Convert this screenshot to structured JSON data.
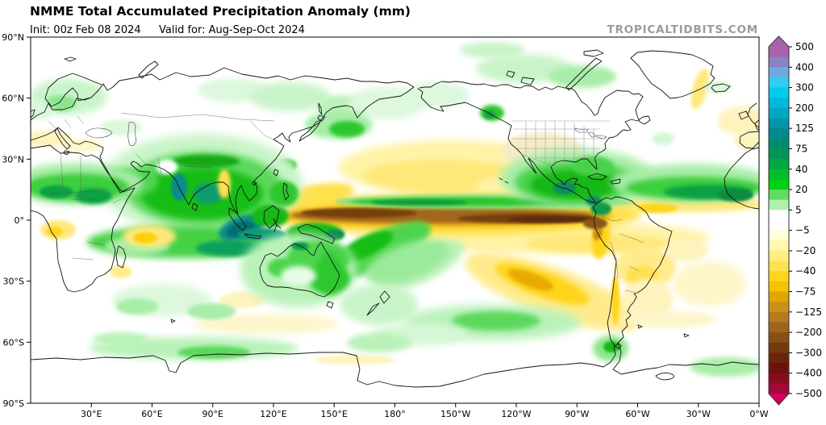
{
  "header": {
    "title": "NMME Total Accumulated Precipitation Anomaly (mm)",
    "init": "Init: 00z Feb 08 2024",
    "valid": "Valid for: Aug-Sep-Oct 2024",
    "watermark": "TROPICALTIDBITS.COM"
  },
  "axes": {
    "lon_ticks": [
      {
        "label": "30°E",
        "deg": 30
      },
      {
        "label": "60°E",
        "deg": 60
      },
      {
        "label": "90°E",
        "deg": 90
      },
      {
        "label": "120°E",
        "deg": 120
      },
      {
        "label": "150°E",
        "deg": 150
      },
      {
        "label": "180°",
        "deg": 180
      },
      {
        "label": "150°W",
        "deg": 210
      },
      {
        "label": "120°W",
        "deg": 240
      },
      {
        "label": "90°W",
        "deg": 270
      },
      {
        "label": "60°W",
        "deg": 300
      },
      {
        "label": "30°W",
        "deg": 330
      },
      {
        "label": "0°W",
        "deg": 360
      }
    ],
    "lat_ticks": [
      {
        "label": "90°N",
        "lat": 90
      },
      {
        "label": "60°N",
        "lat": 60
      },
      {
        "label": "30°N",
        "lat": 30
      },
      {
        "label": "0°",
        "lat": 0
      },
      {
        "label": "30°S",
        "lat": -30
      },
      {
        "label": "60°S",
        "lat": -60
      },
      {
        "label": "90°S",
        "lat": -90
      }
    ]
  },
  "colorbar": {
    "labels": [
      "500",
      "400",
      "300",
      "200",
      "125",
      "75",
      "40",
      "20",
      "5",
      "−5",
      "−20",
      "−40",
      "−75",
      "−125",
      "−200",
      "−300",
      "−400",
      "−500"
    ],
    "band_colors": [
      "#a963ad",
      "#8a82c4",
      "#6fa8dc",
      "#2fcdf2",
      "#00ccf2",
      "#00b8dd",
      "#00a7c4",
      "#0096a8",
      "#008a8c",
      "#008a70",
      "#009455",
      "#00a743",
      "#00bb2d",
      "#00d112",
      "#5fdd5f",
      "#aef0ae",
      "#ffffff",
      "#ffffff",
      "#ffffd8",
      "#fff8ab",
      "#ffee80",
      "#ffe14e",
      "#ffd51d",
      "#f4c202",
      "#e0a703",
      "#cb9016",
      "#b57a1d",
      "#9e641b",
      "#885014",
      "#733a0d",
      "#6b250b",
      "#6f1009",
      "#870b20",
      "#a40837"
    ],
    "top_arrow_color": "#a963ad",
    "bottom_arrow_color": "#d4015f",
    "outline_color": "#333333"
  },
  "chart_data": {
    "type": "heatmap",
    "subtype": "global filled-contour anomaly map, equirectangular 0°E–360°E / 90°N–90°S",
    "title": "NMME Total Accumulated Precipitation Anomaly (mm)",
    "init": "00z Feb 08 2024",
    "valid_period": "Aug-Sep-Oct 2024",
    "units": "mm",
    "colorbar_levels": [
      500,
      400,
      300,
      200,
      125,
      75,
      40,
      20,
      5,
      -5,
      -20,
      -40,
      -75,
      -125,
      -200,
      -300,
      -400,
      -500
    ],
    "lon_tick_labels": [
      "30°E",
      "60°E",
      "90°E",
      "120°E",
      "150°E",
      "180°",
      "150°W",
      "120°W",
      "90°W",
      "60°W",
      "30°W",
      "0°W"
    ],
    "lat_tick_labels": [
      "90°N",
      "60°N",
      "30°N",
      "0°",
      "30°S",
      "60°S",
      "90°S"
    ],
    "legend_position": "right",
    "grid": false,
    "notable_anomalies": [
      {
        "region": "Equatorial central/eastern Pacific band (~0–7°N, 135°E–80°W)",
        "sign": "negative",
        "approx_mm": -300
      },
      {
        "region": "Maritime Continent / Indonesia / Bay of Bengal / India",
        "sign": "positive",
        "approx_mm": 150
      },
      {
        "region": "Caribbean, Central America and tropical Atlantic ITCZ (10–15°N)",
        "sign": "positive",
        "approx_mm": 100
      },
      {
        "region": "Sahel and East Africa",
        "sign": "positive",
        "approx_mm": 60
      },
      {
        "region": "Northern and eastern Australia, SPCZ",
        "sign": "positive",
        "approx_mm": 60
      },
      {
        "region": "Subtropical North Pacific (~15–35°N)",
        "sign": "negative",
        "approx_mm": -40
      },
      {
        "region": "Southeast Pacific diagonal band (~25–40°S, 140–80°W)",
        "sign": "negative",
        "approx_mm": -75
      },
      {
        "region": "Peru/Ecuador coast",
        "sign": "negative",
        "approx_mm": -75
      },
      {
        "region": "Paraguay / northern Argentina",
        "sign": "negative",
        "approx_mm": -40
      },
      {
        "region": "Contiguous US interior",
        "sign": "negative",
        "approx_mm": -20
      },
      {
        "region": "Western equatorial Indian Ocean spot",
        "sign": "negative",
        "approx_mm": -20
      },
      {
        "region": "Southern Ocean bands (~50–65°S)",
        "sign": "positive",
        "approx_mm": 20
      }
    ]
  },
  "map": {
    "field_blobs": [
      [
        560,
        208,
        140,
        34,
        0,
        "#fff3a6",
        5
      ],
      [
        545,
        218,
        95,
        20,
        0,
        "#ffe87a",
        4
      ],
      [
        650,
        232,
        60,
        16,
        0,
        "#fff3a6",
        4
      ],
      [
        672,
        186,
        50,
        22,
        0,
        "#f5ecc6",
        4
      ],
      [
        55,
        172,
        32,
        10,
        0,
        "#fdf3bb",
        3
      ],
      [
        100,
        180,
        28,
        8,
        0,
        "#fdf6c9",
        3
      ],
      [
        920,
        150,
        30,
        18,
        0,
        "#fdf3bb",
        4
      ],
      [
        868,
        110,
        9,
        26,
        15,
        "#ffe87a",
        3
      ],
      [
        928,
        175,
        18,
        10,
        0,
        "#fdf3bb",
        3
      ],
      [
        560,
        295,
        120,
        14,
        0,
        "#fff3a6",
        5
      ],
      [
        700,
        295,
        180,
        20,
        0,
        "#fff3a6",
        5
      ],
      [
        740,
        302,
        90,
        12,
        0,
        "#ffe87a",
        4
      ],
      [
        685,
        362,
        115,
        30,
        20,
        "#ffeb8c",
        5
      ],
      [
        672,
        352,
        62,
        16,
        20,
        "#ffd51d",
        4
      ],
      [
        658,
        347,
        30,
        9,
        20,
        "#e8a900",
        3
      ],
      [
        800,
        332,
        38,
        26,
        0,
        "#ffeb8c",
        4
      ],
      [
        796,
        342,
        20,
        12,
        0,
        "#ffe14e",
        3
      ],
      [
        802,
        372,
        32,
        26,
        0,
        "#fdf3bb",
        4
      ],
      [
        880,
        352,
        45,
        28,
        0,
        "#fdf6c9",
        5
      ],
      [
        850,
        310,
        28,
        14,
        0,
        "#fdf3bb",
        4
      ],
      [
        830,
        396,
        60,
        10,
        0,
        "#fdf6c9",
        4
      ],
      [
        330,
        402,
        90,
        12,
        0,
        "#fdf6c9",
        5
      ],
      [
        440,
        446,
        50,
        6,
        0,
        "#fdf3bb",
        3
      ],
      [
        300,
        372,
        28,
        10,
        0,
        "#fdf3bb",
        3
      ],
      [
        763,
        372,
        5,
        30,
        0,
        "#ffd51d",
        2
      ],
      [
        745,
        295,
        11,
        26,
        8,
        "#ffd51d",
        3
      ],
      [
        741,
        286,
        6,
        12,
        8,
        "#c98a10",
        2
      ],
      [
        150,
        337,
        14,
        8,
        0,
        "#ffeb8c",
        3
      ],
      [
        72,
        285,
        22,
        12,
        0,
        "#ffe87a",
        3
      ],
      [
        68,
        287,
        10,
        6,
        0,
        "#ffd51d",
        2
      ],
      [
        845,
        253,
        105,
        10,
        0,
        "#ffe87a",
        4
      ],
      [
        815,
        258,
        25,
        6,
        0,
        "#ffd51d",
        2
      ],
      [
        380,
        247,
        60,
        16,
        -12,
        "#ffe14e",
        4
      ],
      [
        560,
        266,
        235,
        26,
        0,
        "#ffe14e",
        5
      ],
      [
        555,
        267,
        205,
        15,
        0,
        "#edb30f",
        4
      ],
      [
        548,
        267,
        188,
        10,
        0,
        "#a2661c",
        3
      ],
      [
        445,
        264,
        72,
        6,
        0,
        "#76400e",
        2
      ],
      [
        655,
        271,
        88,
        6,
        0,
        "#76400e",
        2
      ],
      [
        685,
        272,
        55,
        4,
        0,
        "#5c2a08",
        2
      ],
      [
        738,
        277,
        15,
        7,
        0,
        "#8a5512",
        2
      ],
      [
        85,
        120,
        48,
        22,
        0,
        "#c9f4c9",
        5
      ],
      [
        75,
        128,
        20,
        10,
        0,
        "#8ce68c",
        3
      ],
      [
        48,
        137,
        18,
        12,
        0,
        "#ddf8dd",
        4
      ],
      [
        290,
        112,
        45,
        15,
        0,
        "#ddf8dd",
        4
      ],
      [
        360,
        120,
        50,
        18,
        0,
        "#c9f4c9",
        5
      ],
      [
        425,
        132,
        32,
        14,
        0,
        "#b9f2b9",
        4
      ],
      [
        480,
        128,
        48,
        20,
        0,
        "#ddf8dd",
        5
      ],
      [
        540,
        118,
        42,
        16,
        0,
        "#ddf8dd",
        4
      ],
      [
        650,
        85,
        60,
        18,
        0,
        "#c9f4c9",
        5
      ],
      [
        722,
        95,
        42,
        14,
        0,
        "#a8eda8",
        4
      ],
      [
        610,
        62,
        40,
        10,
        0,
        "#c9f4c9",
        4
      ],
      [
        890,
        108,
        18,
        8,
        0,
        "#ddf8dd",
        3
      ],
      [
        822,
        172,
        14,
        8,
        0,
        "#d6f7d6",
        3
      ],
      [
        150,
        158,
        26,
        10,
        0,
        "#ddf8dd",
        3
      ],
      [
        420,
        155,
        42,
        18,
        0,
        "#a8eda8",
        4
      ],
      [
        430,
        160,
        22,
        10,
        0,
        "#2ec82e",
        3
      ],
      [
        355,
        205,
        13,
        8,
        0,
        "#14b814",
        2
      ],
      [
        610,
        140,
        15,
        10,
        0,
        "#2ec82e",
        3
      ],
      [
        607,
        142,
        7,
        5,
        0,
        "#0f9b4a",
        2
      ],
      [
        250,
        228,
        125,
        62,
        0,
        "#c9f4c9",
        6
      ],
      [
        253,
        234,
        98,
        46,
        0,
        "#5cd85c",
        5
      ],
      [
        250,
        240,
        76,
        32,
        0,
        "#17bd17",
        4
      ],
      [
        222,
        232,
        10,
        17,
        0,
        "#0b8a8a",
        2
      ],
      [
        258,
        240,
        18,
        13,
        0,
        "#0c9b6e",
        3
      ],
      [
        255,
        200,
        42,
        8,
        0,
        "#15a815",
        3
      ],
      [
        207,
        207,
        13,
        9,
        0,
        "#ffffff",
        3
      ],
      [
        278,
        228,
        8,
        18,
        0,
        "#ffe14e",
        3
      ],
      [
        160,
        226,
        36,
        18,
        0,
        "#4ed44e",
        4
      ],
      [
        150,
        232,
        13,
        6,
        0,
        "#0fa05a",
        2
      ],
      [
        95,
        228,
        82,
        26,
        0,
        "#a8eda8",
        5
      ],
      [
        95,
        232,
        65,
        17,
        0,
        "#3ecf3e",
        4
      ],
      [
        70,
        238,
        21,
        8,
        0,
        "#0fa044",
        2
      ],
      [
        116,
        243,
        23,
        10,
        0,
        "#0fa044",
        3
      ],
      [
        230,
        300,
        122,
        20,
        0,
        "#45d045",
        5
      ],
      [
        285,
        308,
        42,
        10,
        0,
        "#0fa05a",
        3
      ],
      [
        170,
        305,
        40,
        12,
        0,
        "#a8eda8",
        4
      ],
      [
        185,
        293,
        33,
        14,
        0,
        "#ffe87a",
        4
      ],
      [
        180,
        295,
        15,
        7,
        0,
        "#ffcf0d",
        2
      ],
      [
        300,
        282,
        30,
        14,
        -20,
        "#0b8a8a",
        3
      ],
      [
        298,
        284,
        18,
        8,
        -20,
        "#007070",
        2
      ],
      [
        335,
        268,
        23,
        14,
        0,
        "#14b814",
        3
      ],
      [
        325,
        291,
        30,
        8,
        0,
        "#0d9b75",
        2
      ],
      [
        352,
        240,
        18,
        16,
        0,
        "#2ec82e",
        3
      ],
      [
        390,
        290,
        36,
        14,
        0,
        "#14b814",
        3
      ],
      [
        385,
        296,
        12,
        5,
        0,
        "#0a7a4a",
        2
      ],
      [
        415,
        291,
        12,
        6,
        0,
        "#0c8a5a",
        2
      ],
      [
        470,
        310,
        70,
        22,
        -25,
        "#4ed44e",
        4
      ],
      [
        455,
        305,
        35,
        12,
        -25,
        "#17bd17",
        3
      ],
      [
        520,
        330,
        60,
        20,
        -25,
        "#b9f2b9",
        5
      ],
      [
        505,
        325,
        55,
        22,
        -20,
        "#9bea9b",
        5
      ],
      [
        370,
        335,
        72,
        46,
        0,
        "#b9f2b9",
        6
      ],
      [
        395,
        320,
        40,
        22,
        0,
        "#4ed44e",
        4
      ],
      [
        408,
        345,
        26,
        20,
        0,
        "#2ec82e",
        4
      ],
      [
        408,
        338,
        14,
        26,
        0,
        "#2ec82e",
        4
      ],
      [
        350,
        332,
        18,
        12,
        0,
        "#4ed44e",
        3
      ],
      [
        370,
        342,
        22,
        12,
        0,
        "#e8fbe8",
        4
      ],
      [
        372,
        305,
        11,
        5,
        0,
        "#0f9b4a",
        2
      ],
      [
        600,
        250,
        185,
        9,
        0,
        "#7fe07f",
        3
      ],
      [
        590,
        250,
        155,
        5,
        0,
        "#2ec82e",
        2
      ],
      [
        520,
        251,
        60,
        3.5,
        0,
        "#0c9b3c",
        2
      ],
      [
        700,
        249,
        52,
        3.5,
        0,
        "#0c9b3c",
        2
      ],
      [
        715,
        221,
        95,
        36,
        0,
        "#a8eda8",
        6
      ],
      [
        714,
        226,
        75,
        26,
        0,
        "#49d249",
        5
      ],
      [
        712,
        229,
        55,
        18,
        0,
        "#14b814",
        4
      ],
      [
        700,
        233,
        14,
        8,
        0,
        "#0b8a60",
        2
      ],
      [
        736,
        249,
        10,
        6,
        0,
        "#0b8a60",
        2
      ],
      [
        735,
        206,
        26,
        12,
        0,
        "#49d249",
        3
      ],
      [
        858,
        227,
        100,
        24,
        0,
        "#a8eda8",
        5
      ],
      [
        860,
        233,
        85,
        14,
        0,
        "#3ecf3e",
        4
      ],
      [
        878,
        238,
        55,
        9,
        0,
        "#0fa044",
        3
      ],
      [
        912,
        242,
        22,
        8,
        0,
        "#0c8a3c",
        2
      ],
      [
        745,
        259,
        13,
        8,
        0,
        "#0f9b4a",
        2
      ],
      [
        470,
        378,
        48,
        25,
        0,
        "#c9f4c9",
        5
      ],
      [
        610,
        400,
        110,
        22,
        0,
        "#b9f2b9",
        6
      ],
      [
        615,
        398,
        55,
        12,
        0,
        "#5cd85c",
        4
      ],
      [
        520,
        415,
        60,
        14,
        0,
        "#d6f7d6",
        5
      ],
      [
        240,
        432,
        130,
        14,
        0,
        "#b9f2b9",
        5
      ],
      [
        265,
        437,
        45,
        8,
        0,
        "#5cd85c",
        3
      ],
      [
        150,
        420,
        35,
        8,
        0,
        "#b9f2b9",
        4
      ],
      [
        470,
        425,
        40,
        12,
        0,
        "#b9f2b9",
        4
      ],
      [
        757,
        432,
        22,
        16,
        0,
        "#8ce68c",
        4
      ],
      [
        758,
        430,
        10,
        7,
        0,
        "#14b814",
        2
      ],
      [
        900,
        455,
        45,
        12,
        0,
        "#a8eda8",
        4
      ],
      [
        200,
        372,
        62,
        20,
        0,
        "#ddf8dd",
        5
      ],
      [
        170,
        380,
        26,
        10,
        0,
        "#a8eda8",
        3
      ],
      [
        262,
        386,
        30,
        10,
        0,
        "#a8eda8",
        3
      ]
    ]
  }
}
